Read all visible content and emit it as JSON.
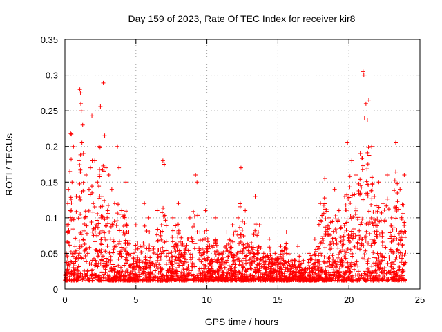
{
  "chart_data": {
    "type": "scatter",
    "title": "Day 159 of 2023, Rate Of TEC Index for receiver kir8",
    "xlabel": "GPS time / hours",
    "ylabel": "ROTI / TECUs",
    "xlim": [
      0,
      25
    ],
    "ylim": [
      0,
      0.35
    ],
    "xticks": [
      0,
      5,
      10,
      15,
      20,
      25
    ],
    "yticks": [
      0,
      0.05,
      0.1,
      0.15,
      0.2,
      0.25,
      0.3,
      0.35
    ],
    "xtick_labels": [
      "0",
      "5",
      "10",
      "15",
      "20",
      "25"
    ],
    "ytick_labels": [
      "0",
      "0.05",
      "0.1",
      "0.15",
      "0.2",
      "0.25",
      "0.3",
      "0.35"
    ],
    "grid": true,
    "marker": "+",
    "color": "#ff0000",
    "series": [
      {
        "name": "ROTI",
        "points": [
          [
            0.05,
            0.02
          ],
          [
            0.1,
            0.05
          ],
          [
            0.15,
            0.09
          ],
          [
            0.2,
            0.12
          ],
          [
            0.25,
            0.14
          ],
          [
            0.3,
            0.08
          ],
          [
            0.35,
            0.165
          ],
          [
            0.4,
            0.218
          ],
          [
            0.45,
            0.217
          ],
          [
            0.5,
            0.15
          ],
          [
            0.55,
            0.1
          ],
          [
            0.6,
            0.2
          ],
          [
            0.7,
            0.06
          ],
          [
            0.8,
            0.13
          ],
          [
            0.9,
            0.03
          ],
          [
            1.0,
            0.18
          ],
          [
            1.05,
            0.28
          ],
          [
            1.1,
            0.275
          ],
          [
            1.12,
            0.26
          ],
          [
            1.15,
            0.25
          ],
          [
            1.2,
            0.205
          ],
          [
            1.25,
            0.23
          ],
          [
            1.3,
            0.19
          ],
          [
            1.4,
            0.1
          ],
          [
            1.5,
            0.16
          ],
          [
            1.6,
            0.05
          ],
          [
            1.7,
            0.14
          ],
          [
            1.8,
            0.17
          ],
          [
            1.9,
            0.243
          ],
          [
            2.0,
            0.12
          ],
          [
            2.1,
            0.18
          ],
          [
            2.2,
            0.09
          ],
          [
            2.3,
            0.15
          ],
          [
            2.4,
            0.2
          ],
          [
            2.5,
            0.256
          ],
          [
            2.6,
            0.13
          ],
          [
            2.7,
            0.289
          ],
          [
            2.8,
            0.215
          ],
          [
            2.9,
            0.17
          ],
          [
            3.0,
            0.11
          ],
          [
            3.1,
            0.16
          ],
          [
            3.2,
            0.07
          ],
          [
            3.3,
            0.14
          ],
          [
            3.4,
            0.09
          ],
          [
            3.5,
            0.12
          ],
          [
            3.6,
            0.06
          ],
          [
            3.7,
            0.2
          ],
          [
            3.8,
            0.17
          ],
          [
            3.9,
            0.05
          ],
          [
            4.0,
            0.11
          ],
          [
            4.3,
            0.15
          ],
          [
            4.5,
            0.08
          ],
          [
            4.8,
            0.05
          ],
          [
            5.0,
            0.09
          ],
          [
            5.3,
            0.06
          ],
          [
            5.6,
            0.12
          ],
          [
            5.9,
            0.1
          ],
          [
            6.2,
            0.06
          ],
          [
            6.5,
            0.11
          ],
          [
            6.8,
            0.09
          ],
          [
            6.9,
            0.18
          ],
          [
            7.0,
            0.175
          ],
          [
            7.3,
            0.05
          ],
          [
            7.6,
            0.1
          ],
          [
            8.0,
            0.12
          ],
          [
            8.4,
            0.06
          ],
          [
            8.8,
            0.1
          ],
          [
            9.2,
            0.16
          ],
          [
            9.3,
            0.15
          ],
          [
            9.5,
            0.08
          ],
          [
            9.9,
            0.11
          ],
          [
            10.3,
            0.06
          ],
          [
            10.6,
            0.1
          ],
          [
            11.0,
            0.05
          ],
          [
            11.4,
            0.08
          ],
          [
            11.8,
            0.09
          ],
          [
            12.2,
            0.1
          ],
          [
            12.4,
            0.17
          ],
          [
            12.7,
            0.11
          ],
          [
            13.0,
            0.06
          ],
          [
            13.4,
            0.13
          ],
          [
            13.7,
            0.09
          ],
          [
            14.0,
            0.05
          ],
          [
            14.4,
            0.07
          ],
          [
            14.8,
            0.05
          ],
          [
            15.2,
            0.06
          ],
          [
            15.6,
            0.08
          ],
          [
            16.0,
            0.04
          ],
          [
            16.4,
            0.06
          ],
          [
            16.8,
            0.04
          ],
          [
            17.2,
            0.05
          ],
          [
            17.6,
            0.07
          ],
          [
            18.0,
            0.12
          ],
          [
            18.3,
            0.155
          ],
          [
            18.6,
            0.1
          ],
          [
            19.0,
            0.14
          ],
          [
            19.3,
            0.11
          ],
          [
            19.7,
            0.13
          ],
          [
            19.9,
            0.205
          ],
          [
            20.2,
            0.18
          ],
          [
            20.5,
            0.16
          ],
          [
            20.8,
            0.19
          ],
          [
            21.0,
            0.305
          ],
          [
            21.05,
            0.3
          ],
          [
            21.1,
            0.24
          ],
          [
            21.2,
            0.26
          ],
          [
            21.3,
            0.237
          ],
          [
            21.4,
            0.265
          ],
          [
            21.6,
            0.2
          ],
          [
            21.8,
            0.13
          ],
          [
            22.1,
            0.15
          ],
          [
            22.4,
            0.12
          ],
          [
            22.7,
            0.16
          ],
          [
            23.0,
            0.1
          ],
          [
            23.3,
            0.205
          ],
          [
            23.6,
            0.14
          ],
          [
            23.9,
            0.16
          ],
          [
            24.0,
            0.08
          ]
        ]
      }
    ]
  }
}
